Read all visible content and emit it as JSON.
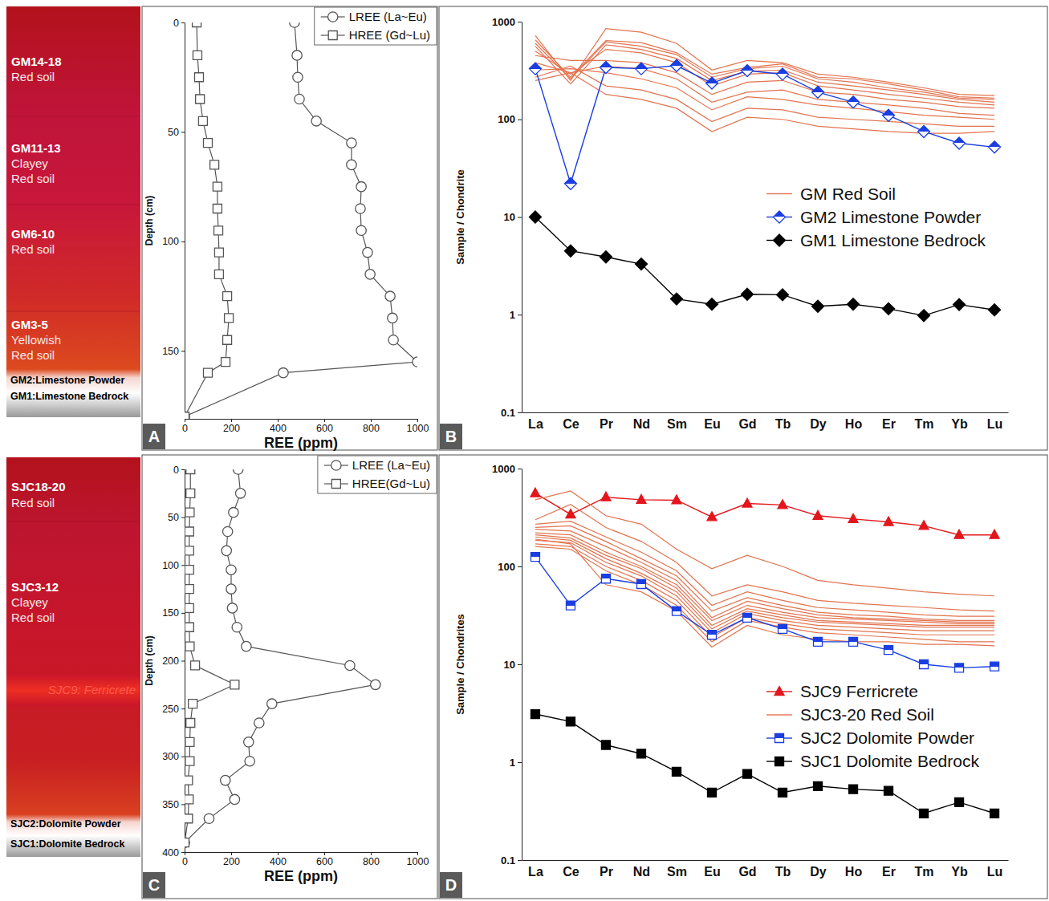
{
  "chart_data": [
    {
      "type": "line",
      "panel_label": "A",
      "orientation": "horizontal",
      "x_label": "REE (ppm)",
      "y_label": "Depth (cm)",
      "y": [
        0,
        15,
        25,
        35,
        45,
        55,
        65,
        75,
        85,
        95,
        105,
        115,
        125,
        135,
        145,
        155,
        160,
        180
      ],
      "series": [
        {
          "name": "LREE (La~Eu)",
          "color": "#555555",
          "marker": "circle_open",
          "values": [
            472,
            483,
            486,
            493,
            566,
            717,
            717,
            759,
            755,
            759,
            786,
            797,
            883,
            893,
            897,
            1000,
            424,
            0
          ]
        },
        {
          "name": "HREE (Gd~Lu)",
          "color": "#555555",
          "marker": "square_open",
          "values": [
            52,
            55,
            62,
            66,
            79,
            100,
            128,
            141,
            141,
            145,
            148,
            148,
            183,
            190,
            183,
            176,
            100,
            0
          ]
        }
      ],
      "xlim": [
        0,
        1000
      ],
      "xticks": [
        0,
        200,
        400,
        600,
        800,
        1000
      ],
      "ylim": [
        0,
        181
      ],
      "yticks": [
        0,
        50,
        100,
        150
      ],
      "grid": false,
      "legend": "upper right"
    },
    {
      "type": "line",
      "panel_label": "B",
      "log": "y",
      "y_label": "Sample / Chondrite",
      "categories": [
        "La",
        "Ce",
        "Pr",
        "Nd",
        "Sm",
        "Eu",
        "Gd",
        "Tb",
        "Dy",
        "Ho",
        "Er",
        "Tm",
        "Yb",
        "Lu"
      ],
      "series": [
        {
          "name": "GM Red Soil",
          "color": "#e2734f",
          "marker": "none",
          "values": [
            [
              720,
              250,
              850,
              780,
              600,
              320,
              400,
              380,
              290,
              270,
              240,
              210,
              180,
              175
            ],
            [
              650,
              270,
              640,
              610,
              480,
              290,
              340,
              370,
              270,
              260,
              230,
              200,
              170,
              165
            ],
            [
              600,
              260,
              620,
              560,
              460,
              270,
              330,
              350,
              260,
              240,
              210,
              190,
              165,
              160
            ],
            [
              560,
              230,
              580,
              520,
              420,
              250,
              310,
              320,
              240,
              220,
              200,
              180,
              160,
              150
            ],
            [
              500,
              290,
              520,
              480,
              380,
              220,
              290,
              300,
              220,
              200,
              180,
              165,
              150,
              140
            ],
            [
              450,
              400,
              400,
              380,
              300,
              180,
              240,
              250,
              190,
              180,
              160,
              150,
              135,
              130
            ],
            [
              380,
              300,
              350,
              330,
              260,
              150,
              190,
              200,
              160,
              150,
              140,
              130,
              115,
              110
            ],
            [
              320,
              330,
              300,
              260,
              210,
              125,
              170,
              160,
              140,
              130,
              120,
              110,
              105,
              100
            ],
            [
              270,
              350,
              220,
              200,
              160,
              95,
              130,
              125,
              105,
              100,
              95,
              90,
              85,
              85
            ],
            [
              250,
              300,
              180,
              160,
              130,
              75,
              105,
              100,
              85,
              80,
              75,
              72,
              72,
              75
            ]
          ]
        },
        {
          "name": "GM2 Limestone Powder",
          "color": "#1a3ee0",
          "marker": "diamond_half",
          "values": [
            330,
            22,
            340,
            330,
            355,
            235,
            315,
            290,
            190,
            150,
            110,
            75,
            57,
            52
          ]
        },
        {
          "name": "GM1 Limestone Bedrock",
          "color": "#000000",
          "marker": "diamond",
          "values": [
            10,
            4.5,
            3.9,
            3.3,
            1.45,
            1.28,
            1.62,
            1.6,
            1.22,
            1.28,
            1.15,
            0.98,
            1.27,
            1.12
          ]
        }
      ],
      "ylim": [
        0.1,
        1000
      ],
      "yticks": [
        0.1,
        1,
        10,
        100,
        1000
      ],
      "grid": false,
      "legend": "center right"
    },
    {
      "type": "line",
      "panel_label": "C",
      "orientation": "horizontal",
      "x_label": "REE (ppm)",
      "y_label": "Depth (cm)",
      "y": [
        0,
        25,
        45,
        65,
        85,
        105,
        125,
        145,
        165,
        185,
        205,
        225,
        245,
        265,
        285,
        305,
        325,
        345,
        365,
        390
      ],
      "series": [
        {
          "name": "LREE (La~Eu)",
          "color": "#555555",
          "marker": "circle_open",
          "values": [
            230,
            240,
            210,
            185,
            180,
            200,
            200,
            205,
            225,
            265,
            710,
            820,
            375,
            320,
            275,
            280,
            175,
            215,
            105,
            0
          ]
        },
        {
          "name": "HREE(Gd~Lu)",
          "color": "#555555",
          "marker": "square_open",
          "values": [
            25,
            25,
            22,
            20,
            20,
            20,
            20,
            20,
            20,
            22,
            45,
            215,
            35,
            25,
            22,
            22,
            15,
            18,
            15,
            0
          ]
        }
      ],
      "xlim": [
        0,
        1000
      ],
      "xticks": [
        0,
        200,
        400,
        600,
        800,
        1000
      ],
      "ylim": [
        0,
        400
      ],
      "yticks": [
        0,
        50,
        100,
        150,
        200,
        250,
        300,
        350,
        400
      ],
      "grid": false,
      "legend": "upper right"
    },
    {
      "type": "line",
      "panel_label": "D",
      "log": "y",
      "y_label": "Sample / Chondrites",
      "categories": [
        "La",
        "Ce",
        "Pr",
        "Nd",
        "Sm",
        "Eu",
        "Gd",
        "Tb",
        "Dy",
        "Ho",
        "Er",
        "Tm",
        "Yb",
        "Lu"
      ],
      "series": [
        {
          "name": "SJC9 Ferricrete",
          "color": "#e3161c",
          "marker": "triangle",
          "values": [
            560,
            340,
            510,
            480,
            475,
            320,
            440,
            425,
            330,
            305,
            285,
            260,
            210,
            210
          ]
        },
        {
          "name": "SJC3-20 Red Soil",
          "color": "#e2734f",
          "marker": "none",
          "values": [
            [
              480,
              590,
              330,
              270,
              150,
              95,
              130,
              100,
              72,
              65,
              60,
              55,
              52,
              50
            ],
            [
              300,
              430,
              250,
              180,
              110,
              50,
              65,
              55,
              45,
              42,
              40,
              38,
              36,
              35
            ],
            [
              270,
              290,
              200,
              140,
              90,
              40,
              55,
              45,
              38,
              36,
              34,
              32,
              31,
              31
            ],
            [
              250,
              260,
              180,
              120,
              80,
              35,
              48,
              40,
              34,
              32,
              31,
              29,
              28,
              28
            ],
            [
              240,
              230,
              160,
              110,
              72,
              30,
              44,
              37,
              32,
              30,
              29,
              28,
              27,
              27
            ],
            [
              220,
              210,
              140,
              100,
              65,
              28,
              40,
              34,
              30,
              29,
              28,
              27,
              26,
              26
            ],
            [
              210,
              195,
              130,
              95,
              60,
              25,
              37,
              32,
              28,
              27,
              26,
              25,
              25,
              25
            ],
            [
              200,
              185,
              120,
              85,
              55,
              23,
              35,
              30,
              27,
              26,
              25,
              24,
              24,
              24
            ],
            [
              185,
              175,
              110,
              80,
              50,
              21,
              33,
              28,
              25,
              24,
              23,
              22,
              22,
              22
            ],
            [
              170,
              160,
              100,
              72,
              45,
              19,
              30,
              26,
              23,
              22,
              21,
              20,
              20,
              20
            ],
            [
              160,
              150,
              90,
              65,
              40,
              17,
              28,
              24,
              21,
              20,
              19,
              18,
              17,
              17
            ],
            [
              190,
              170,
              65,
              55,
              35,
              15,
              25,
              20,
              18,
              17,
              17,
              16,
              16,
              15.5
            ]
          ]
        },
        {
          "name": "SJC2 Dolomite Powder",
          "color": "#1a3ee0",
          "marker": "square_half",
          "values": [
            125,
            40,
            75,
            66,
            35,
            20,
            30,
            23,
            17,
            17,
            14,
            10,
            9.2,
            9.5
          ]
        },
        {
          "name": "SJC1 Dolomite Bedrock",
          "color": "#000000",
          "marker": "square",
          "values": [
            3.1,
            2.6,
            1.5,
            1.22,
            0.8,
            0.49,
            0.76,
            0.49,
            0.57,
            0.53,
            0.51,
            0.3,
            0.39,
            0.3
          ]
        }
      ],
      "ylim": [
        0.1,
        1000
      ],
      "yticks": [
        0.1,
        1,
        10,
        100,
        1000
      ],
      "grid": false,
      "legend": "lower right"
    }
  ],
  "sections": [
    {
      "layers": [
        {
          "id": "GM14-18",
          "lines": [
            "Red soil"
          ]
        },
        {
          "id": "GM11-13",
          "lines": [
            "Clayey",
            "Red soil"
          ]
        },
        {
          "id": "GM6-10",
          "lines": [
            "Red soil"
          ]
        },
        {
          "id": "GM3-5",
          "lines": [
            "Yellowish",
            "Red soil"
          ]
        }
      ],
      "base": [
        "GM2:Limestone Powder",
        "GM1:Limestone Bedrock"
      ]
    },
    {
      "layers": [
        {
          "id": "SJC18-20",
          "lines": [
            "Red soil"
          ]
        },
        {
          "id": "SJC3-12",
          "lines": [
            "Clayey",
            "Red soil"
          ]
        }
      ],
      "marker_label": "SJC9: Ferricrete",
      "base": [
        "SJC2:Dolomite Powder",
        "SJC1:Dolomite Bedrock"
      ]
    }
  ]
}
